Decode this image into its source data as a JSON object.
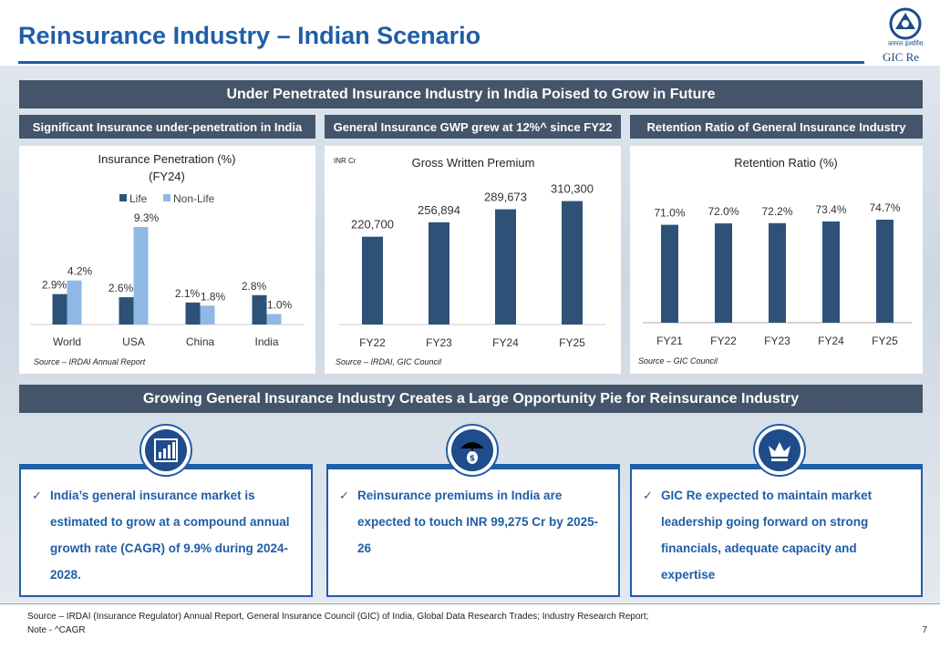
{
  "title": "Reinsurance Industry – Indian Scenario",
  "logo": {
    "hindi_text": "जनरल इंश्योरेंस",
    "name": "GIC Re"
  },
  "banner_top": "Under Penetrated Insurance Industry in India Poised to Grow in Future",
  "subheads": [
    "Significant Insurance under-penetration in India",
    "General Insurance GWP grew at 12%^ since FY22",
    "Retention Ratio of General Insurance Industry"
  ],
  "colors": {
    "navy": "#2e5277",
    "light": "#8fb8e4",
    "accent": "#1f5ea8",
    "banner": "#44546a"
  },
  "chart_data": [
    {
      "type": "bar",
      "title": "Insurance Penetration (%)",
      "subtitle": "(FY24)",
      "legend_position": "top",
      "categories": [
        "World",
        "USA",
        "China",
        "India"
      ],
      "series": [
        {
          "name": "Life",
          "values": [
            2.9,
            2.6,
            2.1,
            2.8
          ],
          "labels": [
            "2.9%",
            "2.6%",
            "2.1%",
            "2.8%"
          ]
        },
        {
          "name": "Non-Life",
          "values": [
            4.2,
            9.3,
            1.8,
            1.0
          ],
          "labels": [
            "4.2%",
            "9.3%",
            "1.8%",
            "1.0%"
          ]
        }
      ],
      "ylim": [
        0,
        10
      ],
      "source": "Source – IRDAI Annual Report"
    },
    {
      "type": "bar",
      "title": "Gross Written Premium",
      "unit_label": "INR Cr",
      "categories": [
        "FY22",
        "FY23",
        "FY24",
        "FY25"
      ],
      "values": [
        220700,
        256894,
        289673,
        310300
      ],
      "labels": [
        "220,700",
        "256,894",
        "289,673",
        "310,300"
      ],
      "ylim": [
        0,
        330000
      ],
      "source": "Source – IRDAI, GIC Council"
    },
    {
      "type": "bar",
      "title": "Retention Ratio (%)",
      "categories": [
        "FY21",
        "FY22",
        "FY23",
        "FY24",
        "FY25"
      ],
      "values": [
        71.0,
        72.0,
        72.2,
        73.4,
        74.7
      ],
      "labels": [
        "71.0%",
        "72.0%",
        "72.2%",
        "73.4%",
        "74.7%"
      ],
      "ylim": [
        0,
        80
      ],
      "source": "Source – GIC Council"
    }
  ],
  "banner_bottom": "Growing General Insurance Industry Creates a Large Opportunity Pie for Reinsurance Industry",
  "cards": [
    {
      "icon": "bar-chart-icon",
      "check": "✓",
      "text": "India’s general insurance market is estimated to grow at a compound annual growth rate (CAGR) of 9.9% during 2024-2028."
    },
    {
      "icon": "umbrella-money-icon",
      "check": "✓",
      "text": "Reinsurance premiums in India are expected to touch INR 99,275 Cr by 2025-26"
    },
    {
      "icon": "crown-icon",
      "check": "✓",
      "text": "GIC Re expected to maintain market leadership going forward on strong financials, adequate capacity and expertise"
    }
  ],
  "footer": {
    "line1": "Source – IRDAI (Insurance Regulator) Annual Report, General Insurance Council (GIC) of India, Global Data Research Trades; Industry Research Report;",
    "line2": "Note - ^CAGR",
    "page": "7"
  }
}
